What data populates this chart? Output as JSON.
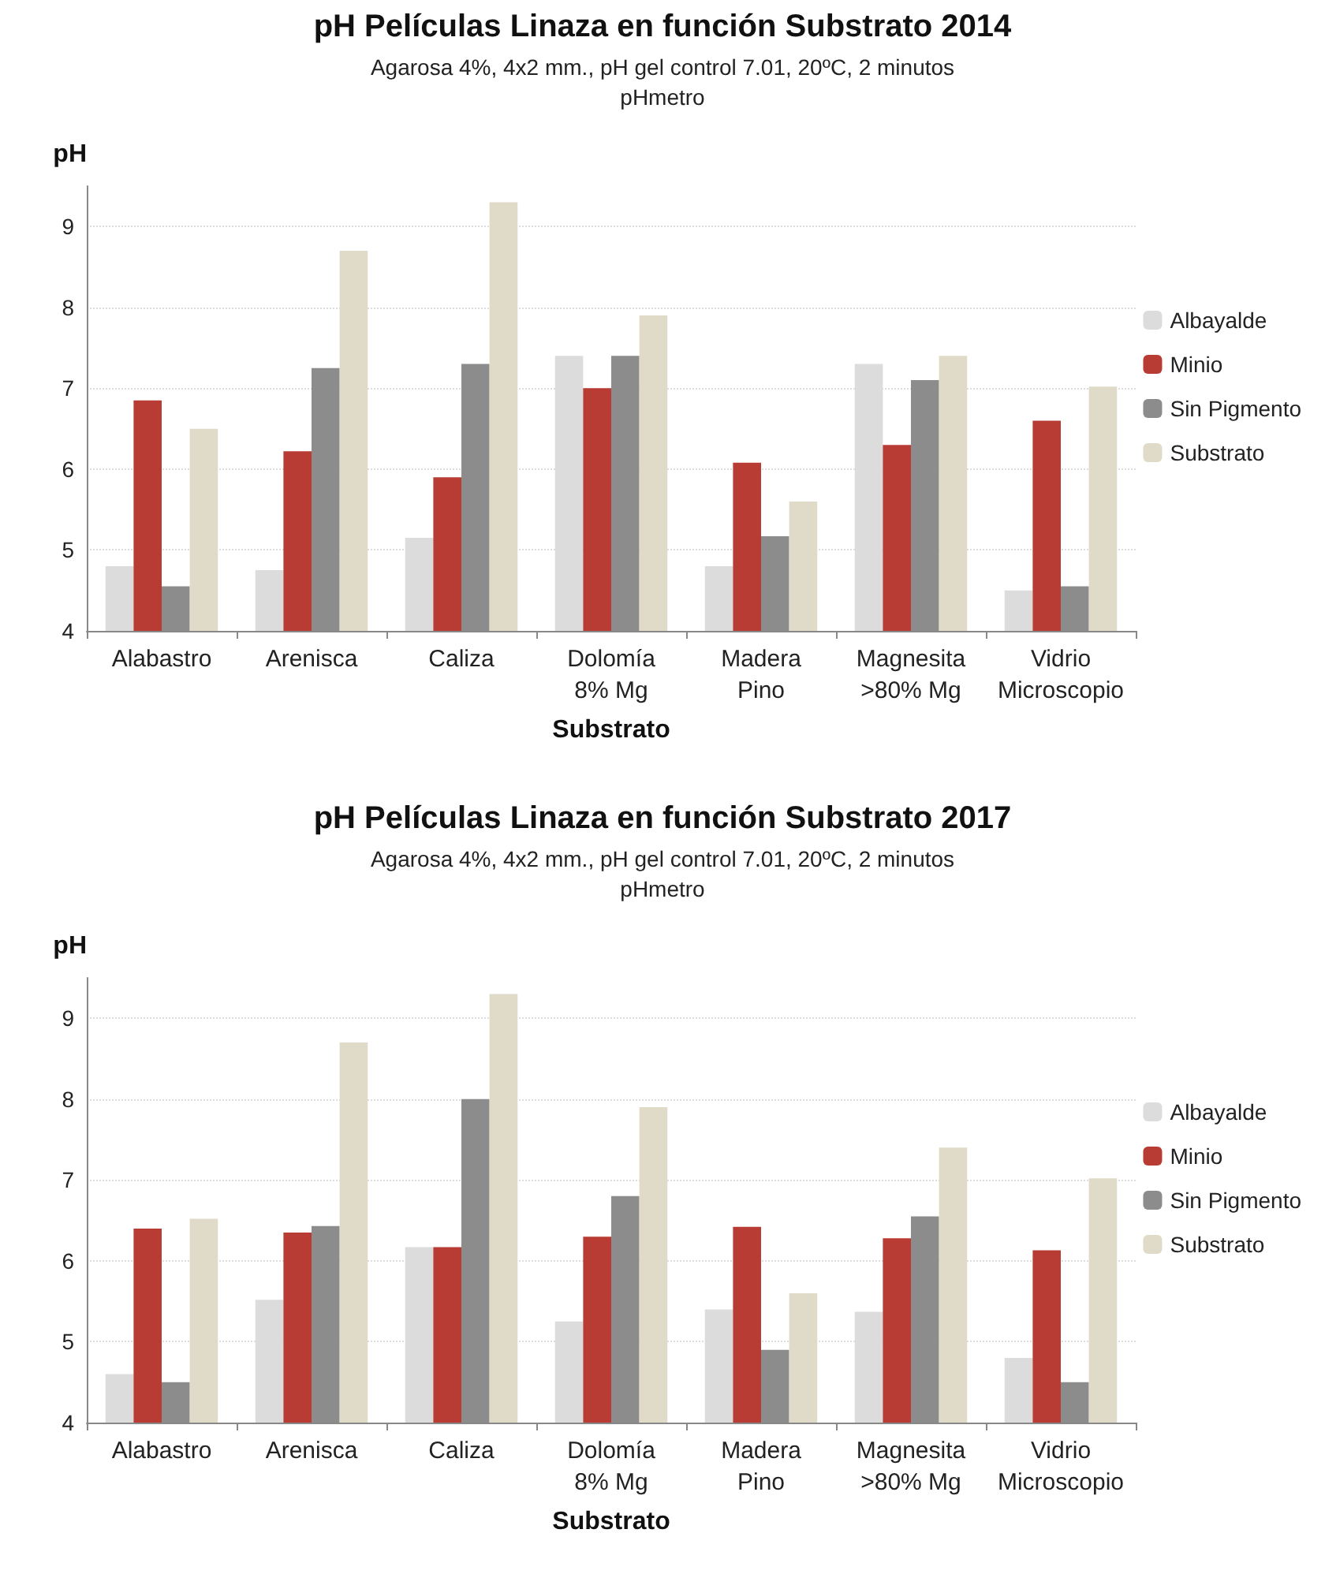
{
  "chart_data": [
    {
      "type": "bar",
      "title": "pH Películas Linaza en función Substrato 2014",
      "subtitle": "Agarosa 4%, 4x2 mm., pH gel control 7.01, 20ºC, 2 minutos\npHmetro",
      "xlabel": "Substrato",
      "ylabel": "pH",
      "categories": [
        "Alabastro",
        "Arenisca",
        "Caliza",
        "Dolomía\n8% Mg",
        "Madera\nPino",
        "Magnesita\n>80% Mg",
        "Vidrio\nMicroscopio"
      ],
      "series": [
        {
          "name": "Albayalde",
          "color": "#dcdcdc",
          "values": [
            4.8,
            4.75,
            5.15,
            7.4,
            4.8,
            7.3,
            4.5
          ]
        },
        {
          "name": "Minio",
          "color": "#b83c34",
          "values": [
            6.85,
            6.22,
            5.9,
            7.0,
            6.08,
            6.3,
            6.6
          ]
        },
        {
          "name": "Sin Pigmento",
          "color": "#8c8c8c",
          "values": [
            4.55,
            7.25,
            7.3,
            7.4,
            5.17,
            7.1,
            4.55
          ]
        },
        {
          "name": "Substrato",
          "color": "#e0dbc8",
          "values": [
            6.5,
            8.7,
            9.3,
            7.9,
            5.6,
            7.4,
            7.02
          ]
        }
      ],
      "ylim": [
        4,
        9.5
      ],
      "yticks": [
        4,
        5,
        6,
        7,
        8,
        9
      ],
      "grid": "y",
      "legend": "right"
    },
    {
      "type": "bar",
      "title": "pH Películas Linaza en función Substrato 2017",
      "subtitle": "Agarosa 4%, 4x2 mm., pH gel control 7.01, 20ºC, 2 minutos\npHmetro",
      "xlabel": "Substrato",
      "ylabel": "pH",
      "categories": [
        "Alabastro",
        "Arenisca",
        "Caliza",
        "Dolomía\n8% Mg",
        "Madera\nPino",
        "Magnesita\n>80% Mg",
        "Vidrio\nMicroscopio"
      ],
      "series": [
        {
          "name": "Albayalde",
          "color": "#dcdcdc",
          "values": [
            4.6,
            5.52,
            6.17,
            5.25,
            5.4,
            5.37,
            4.8
          ]
        },
        {
          "name": "Minio",
          "color": "#b83c34",
          "values": [
            6.4,
            6.35,
            6.17,
            6.3,
            6.42,
            6.28,
            6.13
          ]
        },
        {
          "name": "Sin Pigmento",
          "color": "#8c8c8c",
          "values": [
            4.5,
            6.43,
            8.0,
            6.8,
            4.9,
            6.55,
            4.5
          ]
        },
        {
          "name": "Substrato",
          "color": "#e0dbc8",
          "values": [
            6.52,
            8.7,
            9.3,
            7.9,
            5.6,
            7.4,
            7.02
          ]
        }
      ],
      "ylim": [
        4,
        9.5
      ],
      "yticks": [
        4,
        5,
        6,
        7,
        8,
        9
      ],
      "grid": "y",
      "legend": "right"
    }
  ]
}
